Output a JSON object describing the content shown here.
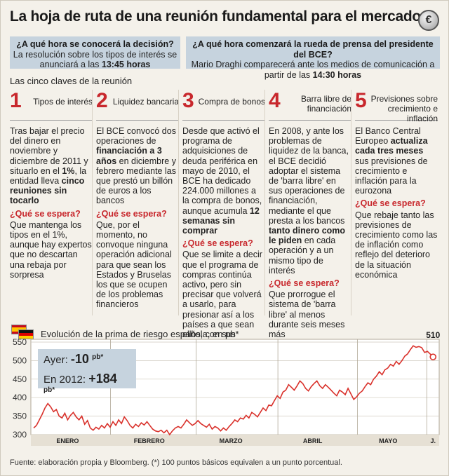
{
  "title": "La hoja de ruta de una reunión fundamental para el mercado",
  "icon": "euro-coin-icon",
  "q1": {
    "question": "¿A qué hora se conocerá la decisión?",
    "text": "La resolución sobre los tipos de interés se anunciará a las",
    "time": "13:45 horas"
  },
  "q2": {
    "question": "¿A qué hora comenzará la rueda de prensa del presidente del BCE?",
    "text": "Mario Draghi comparecerá ante los medios de comunicación a partir de las",
    "time": "14:30 horas"
  },
  "keys_title": "Las cinco claves de la reunión",
  "keys": [
    {
      "num": "1",
      "head": "Tipos de interés",
      "body_parts": [
        [
          "Tras bajar el precio del dinero en noviembre y diciembre de 2011 y situarlo en el ",
          false
        ],
        [
          "1%",
          true
        ],
        [
          ", la entidad lleva ",
          false
        ],
        [
          "cinco reuniones sin tocarlo",
          true
        ]
      ],
      "esp": "¿Qué se espera?",
      "answer": "Que mantenga los tipos en el 1%, aunque hay expertos que no descartan una rebaja por sorpresa"
    },
    {
      "num": "2",
      "head": "Liquidez bancaria",
      "body_parts": [
        [
          "El BCE convocó dos operaciones de ",
          false
        ],
        [
          "financiación a 3 años",
          true
        ],
        [
          " en diciembre y febrero mediante las que prestó un billón de euros a los bancos",
          false
        ]
      ],
      "esp": "¿Qué se espera?",
      "answer": " Que, por el momento, no convoque ninguna operación adicional para que sean los Estados y Bruselas los que se ocupen de los problemas financieros"
    },
    {
      "num": "3",
      "head": "Compra de bonos",
      "body_parts": [
        [
          "Desde que activó el programa de adquisiciones de deuda periférica en mayo de 2010, el BCE ha dedicado 224.000 millones a la compra de bonos, aunque acumula ",
          false
        ],
        [
          "12 semanas sin comprar",
          true
        ]
      ],
      "esp": "¿Qué se espera?",
      "answer": "Que se limite a decir que el programa de compras continúa activo, pero sin precisar que volverá a usarlo, para presionar así a los países a que sean ellos, con sus reformas, los que recuperen la confianza de los inversores"
    },
    {
      "num": "4",
      "head": "Barra libre de financiación",
      "body_parts": [
        [
          "En 2008, y ante los problemas de liquidez de la banca, el BCE decidió adoptar el sistema de 'barra libre' en sus operaciones de financiación, mediante el que presta a los bancos ",
          false
        ],
        [
          "tanto dinero como le piden",
          true
        ],
        [
          " en cada operación y a un mismo tipo de interés",
          false
        ]
      ],
      "esp": "¿Qué se espera?",
      "answer": "Que prorrogue el sistema de 'barra libre' al menos durante seis meses más"
    },
    {
      "num": "5",
      "head": "Previsiones sobre crecimiento e inflación",
      "body_parts": [
        [
          "El Banco Central Europeo ",
          false
        ],
        [
          "actualiza cada tres meses",
          true
        ],
        [
          " sus previsiones de crecimiento e inflación para la eurozona",
          false
        ]
      ],
      "esp": "¿Qué se espera?",
      "answer": "Que rebaje tanto las previsiones de crecimiento como las de inflación como reflejo del deterioro de la situación económica"
    }
  ],
  "chart_data": {
    "type": "line",
    "title": "Evolución de la prima de riesgo española, en pb*",
    "flags": [
      "spain-flag-icon",
      "germany-flag-icon"
    ],
    "ylim": [
      300,
      550
    ],
    "yticks": [
      300,
      350,
      400,
      450,
      500,
      550
    ],
    "xticks": [
      "ENERO",
      "FEBRERO",
      "MARZO",
      "ABRIL",
      "MAYO",
      "J."
    ],
    "last_label": "510",
    "ayer_label": "Ayer:",
    "ayer_value": "-10",
    "ayer_unit": "pb*",
    "y2012_label": "En 2012:",
    "y2012_value": "+184",
    "y2012_unit": "pb*",
    "color": "#d9312b",
    "values": [
      318,
      325,
      340,
      355,
      372,
      384,
      375,
      362,
      368,
      350,
      345,
      358,
      340,
      352,
      360,
      348,
      340,
      350,
      328,
      338,
      318,
      312,
      320,
      315,
      325,
      318,
      330,
      320,
      335,
      325,
      340,
      330,
      348,
      338,
      325,
      318,
      328,
      322,
      332,
      326,
      335,
      325,
      315,
      310,
      308,
      312,
      305,
      312,
      300,
      310,
      318,
      322,
      318,
      328,
      340,
      332,
      325,
      330,
      338,
      330,
      325,
      320,
      328,
      315,
      322,
      318,
      310,
      318,
      312,
      322,
      330,
      340,
      335,
      345,
      342,
      352,
      345,
      360,
      355,
      348,
      360,
      372,
      365,
      380,
      378,
      392,
      405,
      398,
      415,
      420,
      435,
      428,
      420,
      432,
      445,
      438,
      425,
      418,
      430,
      438,
      445,
      432,
      425,
      435,
      428,
      420,
      412,
      405,
      420,
      415,
      408,
      425,
      410,
      395,
      402,
      412,
      418,
      430,
      440,
      435,
      450,
      458,
      470,
      462,
      475,
      480,
      490,
      485,
      498,
      490,
      500,
      512,
      518,
      530,
      540,
      536,
      538,
      535,
      522,
      525,
      518,
      510
    ]
  },
  "source": "Fuente: elaboración propia y Bloomberg. (*) 100 puntos básicos equivalen a un punto porcentual."
}
